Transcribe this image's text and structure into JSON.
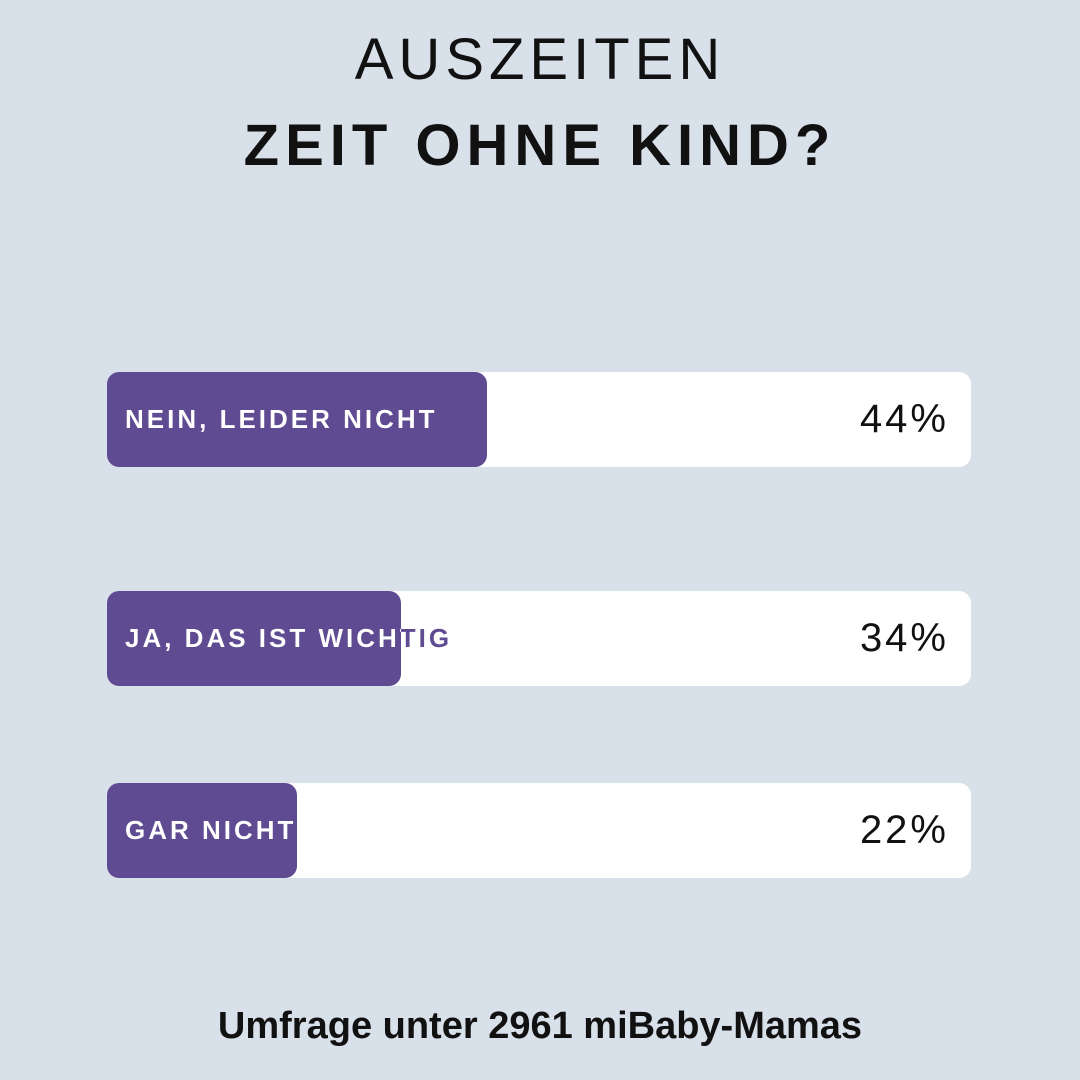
{
  "chart_data": {
    "type": "bar",
    "title": "AUSZEITEN",
    "subtitle": "ZEIT OHNE KIND?",
    "categories": [
      "NEIN, LEIDER NICHT",
      "JA, DAS IST WICHTIG",
      "GAR NICHT"
    ],
    "values": [
      44,
      34,
      22
    ],
    "value_labels": [
      "44%",
      "34%",
      "22%"
    ],
    "xlim": [
      0,
      100
    ],
    "footnote": "Umfrage unter 2961 miBaby-Mamas",
    "colors": {
      "fill": "#5f4b91",
      "track": "#ffffff",
      "background": "#d8e0ea"
    }
  }
}
